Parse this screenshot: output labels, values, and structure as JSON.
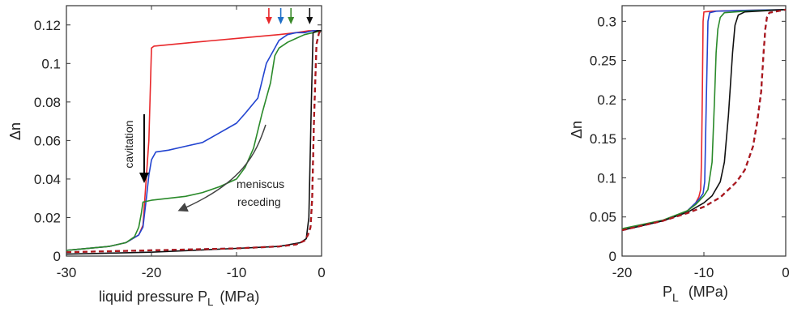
{
  "chart_data": [
    {
      "type": "line",
      "xlabel_main": "liquid pressure P",
      "xlabel_sub": "L",
      "xlabel_unit": "(MPa)",
      "ylabel": "Δn",
      "xlim": [
        -30,
        0
      ],
      "ylim": [
        0,
        0.13
      ],
      "xticks": [
        -30,
        -20,
        -10,
        0
      ],
      "yticks": [
        0,
        0.02,
        0.04,
        0.06,
        0.08,
        0.1,
        0.12
      ],
      "annotations": {
        "cavitation": "cavitation",
        "meniscus_line1": "meniscus",
        "meniscus_line2": "receding"
      },
      "top_arrow_colors": [
        "#e8282b",
        "#2070c8",
        "#3a8a2a",
        "#111111"
      ],
      "top_arrow_x": [
        -6.2,
        -4.8,
        -3.6,
        -1.4
      ],
      "series": [
        {
          "color": "#e8282b",
          "style": "solid",
          "x": [
            -30,
            -25,
            -23,
            -21.5,
            -21,
            -20.3,
            -20,
            -19.7,
            -15,
            -10,
            -5,
            -3,
            -1.5,
            -0.5,
            0
          ],
          "y": [
            0.003,
            0.005,
            0.007,
            0.011,
            0.016,
            0.06,
            0.108,
            0.109,
            0.111,
            0.113,
            0.115,
            0.116,
            0.117,
            0.117,
            0.117
          ]
        },
        {
          "color": "#2244d0",
          "style": "solid",
          "x": [
            -30,
            -25,
            -23,
            -21.5,
            -21,
            -20.6,
            -20.3,
            -20,
            -19.5,
            -18,
            -16,
            -14,
            -12,
            -10,
            -9,
            -7.5,
            -6.5,
            -5.5,
            -5,
            -4,
            -3,
            -2,
            -1,
            0
          ],
          "y": [
            0.003,
            0.005,
            0.007,
            0.011,
            0.015,
            0.03,
            0.042,
            0.05,
            0.054,
            0.055,
            0.057,
            0.059,
            0.064,
            0.069,
            0.074,
            0.082,
            0.1,
            0.108,
            0.112,
            0.115,
            0.116,
            0.116,
            0.117,
            0.117
          ]
        },
        {
          "color": "#2a8a2a",
          "style": "solid",
          "x": [
            -30,
            -25,
            -23,
            -22,
            -21.5,
            -21.2,
            -21,
            -20,
            -18,
            -16,
            -14,
            -12,
            -10,
            -9,
            -8,
            -7,
            -6,
            -5.5,
            -5,
            -4,
            -3,
            -2,
            -1,
            0
          ],
          "y": [
            0.003,
            0.005,
            0.007,
            0.01,
            0.015,
            0.022,
            0.028,
            0.029,
            0.03,
            0.031,
            0.033,
            0.036,
            0.04,
            0.046,
            0.056,
            0.074,
            0.09,
            0.104,
            0.108,
            0.111,
            0.113,
            0.115,
            0.116,
            0.117
          ]
        },
        {
          "color": "#111111",
          "style": "solid",
          "x": [
            -30,
            -20,
            -10,
            -5,
            -2.5,
            -1.8,
            -1.5,
            -1.2,
            -1.0,
            -0.5,
            0
          ],
          "y": [
            0.001,
            0.002,
            0.004,
            0.005,
            0.007,
            0.009,
            0.02,
            0.08,
            0.116,
            0.117,
            0.117
          ]
        },
        {
          "color": "#3a3ab0",
          "style": "dashed",
          "x": [
            -30,
            -20,
            -10,
            -5,
            -3,
            -2,
            -1.6,
            -1.3,
            -1.1,
            -0.9,
            -0.6,
            -0.3,
            0
          ],
          "y": [
            0.002,
            0.003,
            0.004,
            0.005,
            0.006,
            0.008,
            0.011,
            0.015,
            0.03,
            0.07,
            0.11,
            0.116,
            0.117
          ]
        },
        {
          "color": "#b01818",
          "style": "dashed",
          "x": [
            -30,
            -20,
            -10,
            -5,
            -3,
            -2,
            -1.6,
            -1.3,
            -1.1,
            -0.9,
            -0.6,
            -0.3,
            0
          ],
          "y": [
            0.002,
            0.003,
            0.004,
            0.005,
            0.006,
            0.008,
            0.011,
            0.015,
            0.03,
            0.07,
            0.11,
            0.116,
            0.117
          ]
        }
      ]
    },
    {
      "type": "line",
      "xlabel_main": "P",
      "xlabel_sub": "L",
      "xlabel_unit": "(MPa)",
      "ylabel": "Δn",
      "xlim": [
        -20,
        0
      ],
      "ylim": [
        0,
        0.32
      ],
      "xticks": [
        -20,
        -10,
        0
      ],
      "yticks": [
        0,
        0.05,
        0.1,
        0.15,
        0.2,
        0.25,
        0.3
      ],
      "series": [
        {
          "color": "#e8282b",
          "style": "solid",
          "x": [
            -20,
            -15,
            -12,
            -11,
            -10.6,
            -10.4,
            -10.3,
            -10.2,
            -10.1,
            -10,
            -9,
            -5,
            0
          ],
          "y": [
            0.033,
            0.045,
            0.058,
            0.068,
            0.076,
            0.085,
            0.12,
            0.2,
            0.3,
            0.312,
            0.313,
            0.314,
            0.315
          ]
        },
        {
          "color": "#2244d0",
          "style": "solid",
          "x": [
            -20,
            -15,
            -12,
            -11,
            -10.5,
            -10.1,
            -9.9,
            -9.7,
            -9.5,
            -9.3,
            -8.5,
            -5,
            0
          ],
          "y": [
            0.033,
            0.045,
            0.058,
            0.068,
            0.074,
            0.08,
            0.095,
            0.2,
            0.3,
            0.311,
            0.313,
            0.314,
            0.315
          ]
        },
        {
          "color": "#2a8a2a",
          "style": "solid",
          "x": [
            -20,
            -15,
            -12,
            -11,
            -10,
            -9.5,
            -9,
            -8.7,
            -8.5,
            -8.3,
            -8,
            -7.5,
            -5,
            0
          ],
          "y": [
            0.035,
            0.046,
            0.058,
            0.066,
            0.077,
            0.085,
            0.12,
            0.2,
            0.26,
            0.29,
            0.305,
            0.311,
            0.313,
            0.315
          ]
        },
        {
          "color": "#111111",
          "style": "solid",
          "x": [
            -20,
            -15,
            -12,
            -10,
            -9,
            -8,
            -7.5,
            -7,
            -6.5,
            -6.2,
            -5.8,
            -5,
            0
          ],
          "y": [
            0.033,
            0.045,
            0.056,
            0.068,
            0.077,
            0.095,
            0.12,
            0.18,
            0.26,
            0.295,
            0.308,
            0.312,
            0.315
          ]
        },
        {
          "color": "#3a3ab0",
          "style": "dashed",
          "x": [
            -20,
            -15,
            -12,
            -10,
            -8,
            -6,
            -5,
            -4,
            -3.5,
            -3,
            -2.7,
            -2.5,
            -2.3,
            -2,
            -1,
            0
          ],
          "y": [
            0.033,
            0.045,
            0.055,
            0.063,
            0.075,
            0.095,
            0.11,
            0.14,
            0.17,
            0.21,
            0.26,
            0.29,
            0.305,
            0.311,
            0.313,
            0.315
          ]
        },
        {
          "color": "#b01818",
          "style": "dashed",
          "x": [
            -20,
            -15,
            -12,
            -10,
            -8,
            -6,
            -5,
            -4,
            -3.5,
            -3,
            -2.7,
            -2.5,
            -2.3,
            -2,
            -1,
            0
          ],
          "y": [
            0.033,
            0.045,
            0.055,
            0.063,
            0.075,
            0.095,
            0.11,
            0.14,
            0.17,
            0.21,
            0.26,
            0.29,
            0.305,
            0.311,
            0.313,
            0.315
          ]
        }
      ]
    }
  ]
}
